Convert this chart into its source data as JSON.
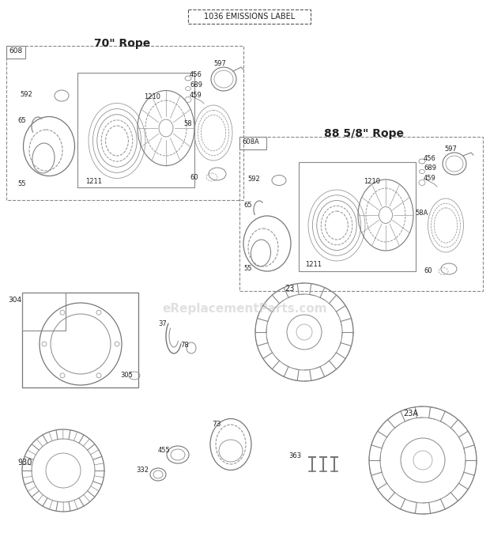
{
  "title": "1036 EMISSIONS LABEL",
  "bg_color": "#ffffff",
  "lc": "#777777",
  "lc2": "#999999",
  "tc": "#222222",
  "watermark": "eReplacementParts.com",
  "s1_title": "70\" Rope",
  "s2_title": "88 5/8\" Rope",
  "s1_label": "608",
  "s2_label": "608A",
  "fig_w": 6.2,
  "fig_h": 6.93
}
